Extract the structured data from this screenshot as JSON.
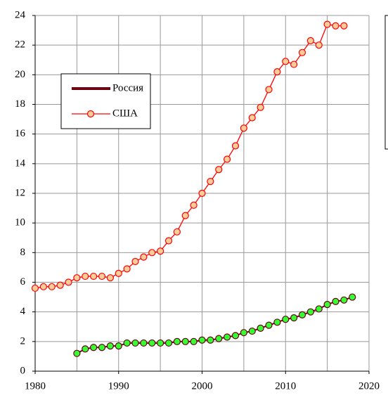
{
  "chart_data": {
    "type": "line",
    "xlim": [
      1980,
      2020
    ],
    "xticks": [
      1980,
      1990,
      2000,
      2010,
      2020
    ],
    "xgrid": [
      1980,
      1985,
      1990,
      1995,
      2000,
      2005,
      2010,
      2015,
      2020
    ],
    "ylim": [
      0,
      24
    ],
    "yticks": [
      0,
      2,
      4,
      6,
      8,
      10,
      12,
      14,
      16,
      18,
      20,
      22,
      24
    ],
    "grid": true,
    "legend": "upper left",
    "series": [
      {
        "name": "Россия",
        "color": "#6b0010",
        "marker_color": "#33ff33",
        "x": [
          1985,
          1986,
          1987,
          1988,
          1989,
          1990,
          1991,
          1992,
          1993,
          1994,
          1995,
          1996,
          1997,
          1998,
          1999,
          2000,
          2001,
          2002,
          2003,
          2004,
          2005,
          2006,
          2007,
          2008,
          2009,
          2010,
          2011,
          2012,
          2013,
          2014,
          2015,
          2016,
          2017,
          2018
        ],
        "values": [
          1.2,
          1.5,
          1.6,
          1.6,
          1.7,
          1.7,
          1.9,
          1.9,
          1.9,
          1.9,
          1.9,
          1.9,
          2.0,
          2.0,
          2.0,
          2.1,
          2.1,
          2.2,
          2.3,
          2.4,
          2.6,
          2.7,
          2.9,
          3.1,
          3.3,
          3.5,
          3.6,
          3.8,
          4.0,
          4.2,
          4.5,
          4.7,
          4.8,
          5.0
        ]
      },
      {
        "name": "США",
        "color": "#ff0000",
        "marker_color": "#ffcc99",
        "x": [
          1980,
          1981,
          1982,
          1983,
          1984,
          1985,
          1986,
          1987,
          1988,
          1989,
          1990,
          1991,
          1992,
          1993,
          1994,
          1995,
          1996,
          1997,
          1998,
          1999,
          2000,
          2001,
          2002,
          2003,
          2004,
          2005,
          2006,
          2007,
          2008,
          2009,
          2010,
          2011,
          2012,
          2013,
          2014,
          2015,
          2016,
          2017
        ],
        "values": [
          5.6,
          5.7,
          5.7,
          5.8,
          6.0,
          6.3,
          6.4,
          6.4,
          6.4,
          6.3,
          6.6,
          6.9,
          7.4,
          7.7,
          8.0,
          8.1,
          8.8,
          9.4,
          10.5,
          11.2,
          12.0,
          12.8,
          13.6,
          14.3,
          15.2,
          16.4,
          17.1,
          17.8,
          19.0,
          20.2,
          20.9,
          20.7,
          21.5,
          22.3,
          22.0,
          23.4,
          23.3,
          23.3
        ]
      }
    ]
  }
}
